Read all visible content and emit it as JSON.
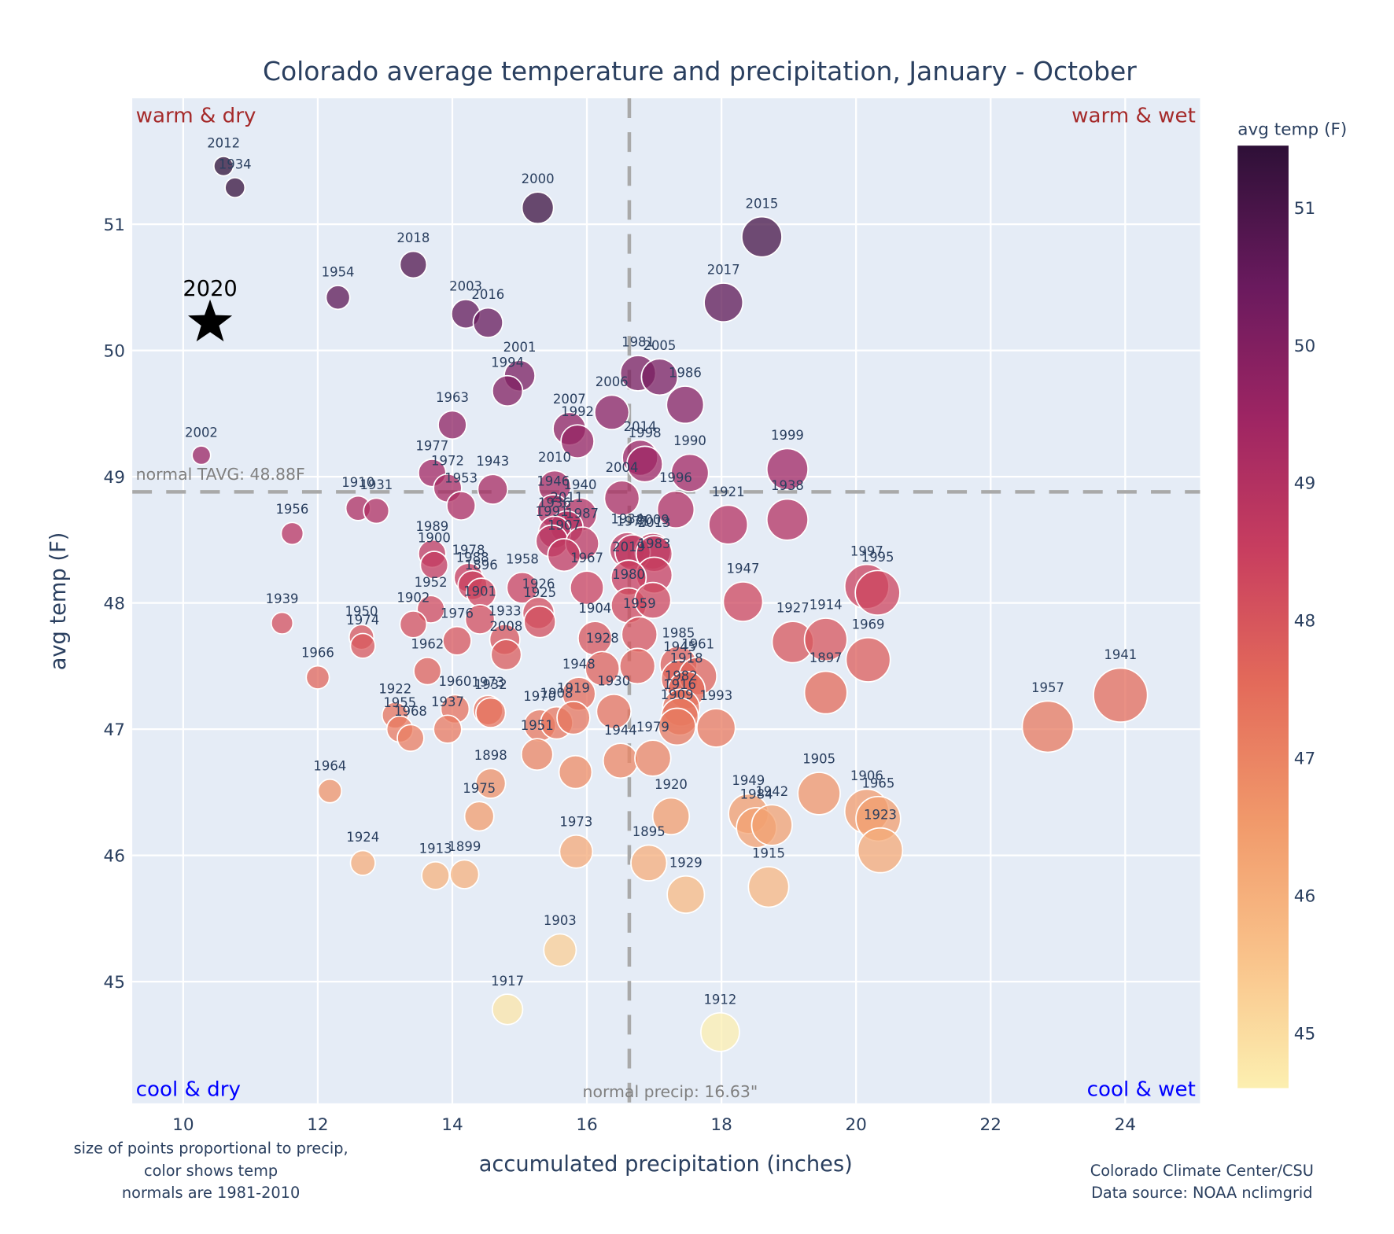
{
  "chart_data": {
    "type": "scatter",
    "title": "Colorado average temperature and precipitation, January - October",
    "xlabel": "accumulated precipitation (inches)",
    "ylabel": "avg temp (F)",
    "xlim": [
      9.25,
      25.1
    ],
    "ylim": [
      44.05,
      51.99
    ],
    "x_ticks": [
      10,
      12,
      14,
      16,
      18,
      20,
      22,
      24
    ],
    "y_ticks": [
      45,
      46,
      47,
      48,
      49,
      50,
      51
    ],
    "grid": true,
    "normal_temp": 48.88,
    "normal_temp_label": "normal TAVG: 48.88F",
    "normal_precip": 16.63,
    "normal_precip_label": "normal precip: 16.63\"",
    "quadrant_labels": {
      "top_left": "warm & dry",
      "top_right": "warm & wet",
      "bottom_left": "cool & dry",
      "bottom_right": "cool & wet"
    },
    "colorbar": {
      "title": "avg temp (F)",
      "range": [
        44.6,
        51.45
      ],
      "ticks": [
        45,
        46,
        47,
        48,
        49,
        50,
        51
      ],
      "colorscale": "magma-like (light yellow to dark purple)"
    },
    "highlight": {
      "year": "2020",
      "precip": 10.4,
      "temp": 50.22,
      "marker": "star"
    },
    "points": [
      {
        "year": "2012",
        "precip": 10.6,
        "temp": 51.46
      },
      {
        "year": "1934",
        "precip": 10.77,
        "temp": 51.29
      },
      {
        "year": "2000",
        "precip": 15.27,
        "temp": 51.13
      },
      {
        "year": "2015",
        "precip": 18.6,
        "temp": 50.9
      },
      {
        "year": "2018",
        "precip": 13.42,
        "temp": 50.68
      },
      {
        "year": "1954",
        "precip": 12.3,
        "temp": 50.42
      },
      {
        "year": "2017",
        "precip": 18.03,
        "temp": 50.38
      },
      {
        "year": "2003",
        "precip": 14.2,
        "temp": 50.29
      },
      {
        "year": "2016",
        "precip": 14.53,
        "temp": 50.22
      },
      {
        "year": "2001",
        "precip": 15.0,
        "temp": 49.8
      },
      {
        "year": "1994",
        "precip": 14.82,
        "temp": 49.68
      },
      {
        "year": "1981",
        "precip": 16.76,
        "temp": 49.82
      },
      {
        "year": "2005",
        "precip": 17.08,
        "temp": 49.79
      },
      {
        "year": "1986",
        "precip": 17.46,
        "temp": 49.57
      },
      {
        "year": "2006",
        "precip": 16.37,
        "temp": 49.51
      },
      {
        "year": "1963",
        "precip": 14.0,
        "temp": 49.41
      },
      {
        "year": "2007",
        "precip": 15.74,
        "temp": 49.38
      },
      {
        "year": "1992",
        "precip": 15.86,
        "temp": 49.28
      },
      {
        "year": "2002",
        "precip": 10.27,
        "temp": 49.17
      },
      {
        "year": "2014",
        "precip": 16.79,
        "temp": 49.15
      },
      {
        "year": "1998",
        "precip": 16.86,
        "temp": 49.1
      },
      {
        "year": "1990",
        "precip": 17.53,
        "temp": 49.03
      },
      {
        "year": "1999",
        "precip": 18.98,
        "temp": 49.06
      },
      {
        "year": "1977",
        "precip": 13.7,
        "temp": 49.03
      },
      {
        "year": "1972",
        "precip": 13.93,
        "temp": 48.91
      },
      {
        "year": "1943",
        "precip": 14.6,
        "temp": 48.9
      },
      {
        "year": "1953",
        "precip": 14.13,
        "temp": 48.77
      },
      {
        "year": "2010",
        "precip": 15.52,
        "temp": 48.92
      },
      {
        "year": "2004",
        "precip": 16.52,
        "temp": 48.83
      },
      {
        "year": "1996",
        "precip": 17.32,
        "temp": 48.74
      },
      {
        "year": "1910",
        "precip": 12.6,
        "temp": 48.75
      },
      {
        "year": "1931",
        "precip": 12.87,
        "temp": 48.73
      },
      {
        "year": "1946",
        "precip": 15.5,
        "temp": 48.73
      },
      {
        "year": "1940",
        "precip": 15.9,
        "temp": 48.7
      },
      {
        "year": "2011",
        "precip": 15.7,
        "temp": 48.6
      },
      {
        "year": "1936",
        "precip": 15.52,
        "temp": 48.56
      },
      {
        "year": "1991",
        "precip": 15.48,
        "temp": 48.49
      },
      {
        "year": "1987",
        "precip": 15.93,
        "temp": 48.47
      },
      {
        "year": "1907",
        "precip": 15.66,
        "temp": 48.38
      },
      {
        "year": "1934b",
        "label": "1934",
        "precip": 16.6,
        "temp": 48.42
      },
      {
        "year": "1921",
        "precip": 18.1,
        "temp": 48.62
      },
      {
        "year": "1938",
        "precip": 18.98,
        "temp": 48.66
      },
      {
        "year": "2009",
        "precip": 16.98,
        "temp": 48.41
      },
      {
        "year": "1971",
        "precip": 16.68,
        "temp": 48.4
      },
      {
        "year": "1956",
        "precip": 11.62,
        "temp": 48.55
      },
      {
        "year": "1989",
        "precip": 13.7,
        "temp": 48.39
      },
      {
        "year": "1900",
        "precip": 13.73,
        "temp": 48.3
      },
      {
        "year": "1978",
        "precip": 14.24,
        "temp": 48.2
      },
      {
        "year": "1988",
        "precip": 14.3,
        "temp": 48.14
      },
      {
        "year": "1896",
        "precip": 14.43,
        "temp": 48.08
      },
      {
        "year": "1958",
        "precip": 15.04,
        "temp": 48.12
      },
      {
        "year": "1967",
        "precip": 16.0,
        "temp": 48.12
      },
      {
        "year": "2013",
        "precip": 17.0,
        "temp": 48.39
      },
      {
        "year": "1983",
        "precip": 17.0,
        "temp": 48.22
      },
      {
        "year": "2019",
        "precip": 16.62,
        "temp": 48.2
      },
      {
        "year": "1997",
        "precip": 20.16,
        "temp": 48.13
      },
      {
        "year": "1995",
        "precip": 20.32,
        "temp": 48.08
      },
      {
        "year": "1952",
        "precip": 13.68,
        "temp": 47.95
      },
      {
        "year": "1901",
        "precip": 14.41,
        "temp": 47.87
      },
      {
        "year": "1926",
        "precip": 15.28,
        "temp": 47.92
      },
      {
        "year": "1925",
        "precip": 15.3,
        "temp": 47.85
      },
      {
        "year": "1980",
        "precip": 16.62,
        "temp": 47.98
      },
      {
        "year": "1980b",
        "label": "",
        "precip": 16.98,
        "temp": 48.02
      },
      {
        "year": "1947",
        "precip": 18.32,
        "temp": 48.01
      },
      {
        "year": "1939",
        "precip": 11.47,
        "temp": 47.84
      },
      {
        "year": "1902",
        "precip": 13.42,
        "temp": 47.83
      },
      {
        "year": "1950",
        "precip": 12.65,
        "temp": 47.73
      },
      {
        "year": "1974",
        "precip": 12.67,
        "temp": 47.66
      },
      {
        "year": "1976",
        "precip": 14.07,
        "temp": 47.7
      },
      {
        "year": "1933",
        "precip": 14.78,
        "temp": 47.71
      },
      {
        "year": "2008",
        "precip": 14.8,
        "temp": 47.59
      },
      {
        "year": "1904",
        "precip": 16.12,
        "temp": 47.72
      },
      {
        "year": "1959",
        "precip": 16.78,
        "temp": 47.75
      },
      {
        "year": "1927",
        "precip": 19.06,
        "temp": 47.69
      },
      {
        "year": "1914",
        "precip": 19.55,
        "temp": 47.71
      },
      {
        "year": "1969",
        "precip": 20.18,
        "temp": 47.55
      },
      {
        "year": "1962",
        "precip": 13.63,
        "temp": 47.46
      },
      {
        "year": "1966",
        "precip": 12.0,
        "temp": 47.41
      },
      {
        "year": "1928",
        "precip": 16.23,
        "temp": 47.48
      },
      {
        "year": "1959b",
        "label": "",
        "precip": 16.75,
        "temp": 47.5
      },
      {
        "year": "1985",
        "precip": 17.36,
        "temp": 47.51
      },
      {
        "year": "1945",
        "precip": 17.38,
        "temp": 47.4
      },
      {
        "year": "1961",
        "precip": 17.65,
        "temp": 47.42
      },
      {
        "year": "1918",
        "precip": 17.48,
        "temp": 47.31
      },
      {
        "year": "1897",
        "precip": 19.55,
        "temp": 47.29
      },
      {
        "year": "1941",
        "precip": 23.93,
        "temp": 47.27
      },
      {
        "year": "1960",
        "precip": 14.04,
        "temp": 47.16
      },
      {
        "year": "1973",
        "precip": 14.53,
        "temp": 47.15
      },
      {
        "year": "1932",
        "precip": 14.57,
        "temp": 47.13
      },
      {
        "year": "1948",
        "precip": 15.88,
        "temp": 47.28
      },
      {
        "year": "1930",
        "precip": 16.4,
        "temp": 47.14
      },
      {
        "year": "1982",
        "precip": 17.4,
        "temp": 47.17
      },
      {
        "year": "1916",
        "precip": 17.38,
        "temp": 47.1
      },
      {
        "year": "1909",
        "precip": 17.34,
        "temp": 47.02
      },
      {
        "year": "1993",
        "precip": 17.92,
        "temp": 47.01
      },
      {
        "year": "1922",
        "precip": 13.15,
        "temp": 47.11
      },
      {
        "year": "1955",
        "precip": 13.22,
        "temp": 47.0
      },
      {
        "year": "1968",
        "precip": 13.38,
        "temp": 46.93
      },
      {
        "year": "1937",
        "precip": 13.93,
        "temp": 47.0
      },
      {
        "year": "1970",
        "precip": 15.3,
        "temp": 47.03
      },
      {
        "year": "1908",
        "precip": 15.55,
        "temp": 47.05
      },
      {
        "year": "1951",
        "precip": 15.26,
        "temp": 46.8
      },
      {
        "year": "1919",
        "precip": 15.8,
        "temp": 47.09
      },
      {
        "year": "1944",
        "precip": 16.5,
        "temp": 46.75
      },
      {
        "year": "1979",
        "precip": 16.98,
        "temp": 46.77
      },
      {
        "year": "1957",
        "precip": 22.85,
        "temp": 47.02
      },
      {
        "year": "1919b",
        "label": "",
        "precip": 15.83,
        "temp": 46.66
      },
      {
        "year": "1964",
        "precip": 12.18,
        "temp": 46.51
      },
      {
        "year": "1898",
        "precip": 14.57,
        "temp": 46.57
      },
      {
        "year": "1975",
        "precip": 14.4,
        "temp": 46.31
      },
      {
        "year": "1920",
        "precip": 17.25,
        "temp": 46.31
      },
      {
        "year": "1949",
        "precip": 18.4,
        "temp": 46.33
      },
      {
        "year": "1984",
        "precip": 18.52,
        "temp": 46.22
      },
      {
        "year": "1942",
        "precip": 18.75,
        "temp": 46.24
      },
      {
        "year": "1905",
        "precip": 19.45,
        "temp": 46.49
      },
      {
        "year": "1906",
        "precip": 20.16,
        "temp": 46.35
      },
      {
        "year": "1965",
        "precip": 20.33,
        "temp": 46.29
      },
      {
        "year": "1923",
        "precip": 20.36,
        "temp": 46.04
      },
      {
        "year": "1924",
        "precip": 12.67,
        "temp": 45.94
      },
      {
        "year": "1913",
        "precip": 13.75,
        "temp": 45.84
      },
      {
        "year": "1899",
        "precip": 14.18,
        "temp": 45.85
      },
      {
        "year": "1973b",
        "label": "1973",
        "precip": 15.84,
        "temp": 46.03
      },
      {
        "year": "1895",
        "precip": 16.92,
        "temp": 45.94
      },
      {
        "year": "1929",
        "precip": 17.47,
        "temp": 45.69
      },
      {
        "year": "1915",
        "precip": 18.7,
        "temp": 45.75
      },
      {
        "year": "1903",
        "precip": 15.6,
        "temp": 45.25
      },
      {
        "year": "1917",
        "precip": 14.82,
        "temp": 44.78
      },
      {
        "year": "1912",
        "precip": 17.98,
        "temp": 44.6
      }
    ]
  },
  "notes": {
    "left_line1": "size of points proportional to precip,",
    "left_line2": "color shows temp",
    "left_line3": "normals are 1981-2010",
    "right_line1": "Colorado Climate Center/CSU",
    "right_line2": "Data source: NOAA nclimgrid"
  }
}
